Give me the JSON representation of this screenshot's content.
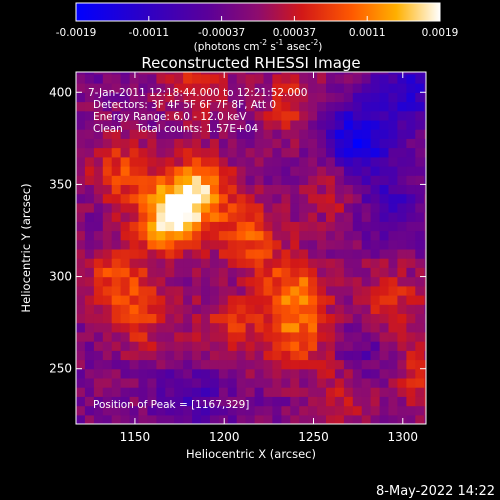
{
  "chart_data": {
    "type": "heatmap",
    "title": "Reconstructed RHESSI Image",
    "colorbar": {
      "ticks": [
        "-0.0019",
        "-0.0011",
        "-0.00037",
        "0.00037",
        "0.0011",
        "0.0019"
      ],
      "range": [
        -0.0019,
        0.0019
      ],
      "label_main": "(photons cm",
      "label_sup1": "-2",
      "label_mid1": " s",
      "label_sup2": "-1",
      "label_mid2": " asec",
      "label_sup3": "-2",
      "label_end": ")"
    },
    "xlabel": "Heliocentric X (arcsec)",
    "ylabel": "Heliocentric Y (arcsec)",
    "xlim": [
      1117,
      1313
    ],
    "ylim": [
      220,
      411
    ],
    "xticks": [
      1150,
      1200,
      1250,
      1300
    ],
    "yticks": [
      250,
      300,
      350,
      400
    ],
    "grid": false,
    "annotations": [
      "7-Jan-2011 12:18:44.000 to 12:21:52.000",
      "Detectors: 3F 4F 5F 6F 7F 8F, Att 0",
      "Energy Range: 6.0 - 12.0 keV",
      "Clean    Total counts: 1.57E+04"
    ],
    "peak_label": "Position of Peak = [1167,329]",
    "peak": [
      1167,
      329
    ],
    "sources": [
      {
        "x": 1167,
        "y": 329,
        "value": 0.0019
      },
      {
        "x": 1183,
        "y": 345,
        "value": 0.0015
      },
      {
        "x": 1212,
        "y": 320,
        "value": 0.0011
      },
      {
        "x": 1237,
        "y": 290,
        "value": 0.0012
      },
      {
        "x": 1238,
        "y": 265,
        "value": 0.001
      },
      {
        "x": 1140,
        "y": 355,
        "value": 0.0009
      },
      {
        "x": 1138,
        "y": 296,
        "value": 0.001
      },
      {
        "x": 1152,
        "y": 273,
        "value": 0.0007
      },
      {
        "x": 1200,
        "y": 270,
        "value": 0.0008
      },
      {
        "x": 1182,
        "y": 402,
        "value": 0.0008
      },
      {
        "x": 1235,
        "y": 390,
        "value": 0.0007
      },
      {
        "x": 1260,
        "y": 345,
        "value": 0.0006
      },
      {
        "x": 1290,
        "y": 285,
        "value": 0.0008
      },
      {
        "x": 1305,
        "y": 245,
        "value": 0.0007
      },
      {
        "x": 1265,
        "y": 235,
        "value": 0.0006
      },
      {
        "x": 1272,
        "y": 372,
        "value": -0.0016
      },
      {
        "x": 1300,
        "y": 398,
        "value": -0.001
      },
      {
        "x": 1290,
        "y": 340,
        "value": -0.0007
      },
      {
        "x": 1180,
        "y": 232,
        "value": -0.0006
      },
      {
        "x": 1278,
        "y": 252,
        "value": -0.0005
      }
    ]
  },
  "footer": {
    "date": "8-May-2022 14:22"
  }
}
